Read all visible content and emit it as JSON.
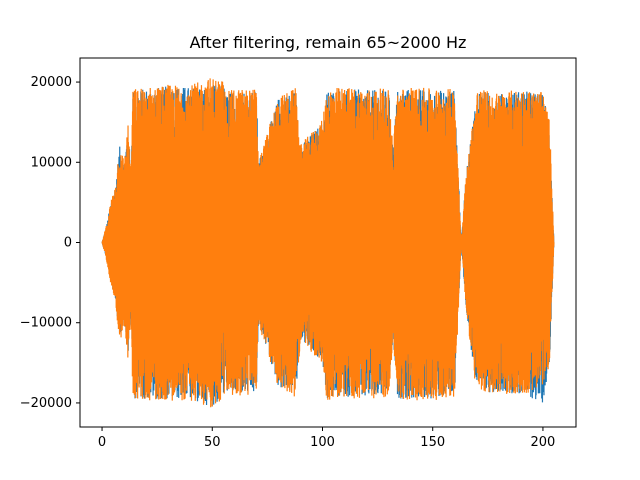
{
  "chart_data": {
    "type": "line",
    "title": "After filtering, remain 65~2000 Hz",
    "xlabel": "",
    "ylabel": "",
    "xlim": [
      -10,
      215
    ],
    "ylim": [
      -23000,
      23000
    ],
    "x_ticks": [
      0,
      50,
      100,
      150,
      200
    ],
    "y_ticks": [
      -20000,
      -10000,
      0,
      10000,
      20000
    ],
    "grid": false,
    "legend": "none",
    "series": [
      {
        "color": "#1f77b4",
        "envelope": {
          "x": [
            0,
            2,
            4,
            6,
            8,
            10,
            12,
            13,
            14,
            20,
            30,
            40,
            50,
            55,
            56,
            60,
            70,
            71,
            80,
            88,
            90,
            100,
            102,
            105,
            110,
            120,
            130,
            132,
            134,
            140,
            150,
            160,
            163,
            165,
            170,
            180,
            190,
            200,
            203,
            205
          ],
          "max": [
            0,
            2000,
            5000,
            7000,
            12000,
            10000,
            15000,
            8000,
            19000,
            19200,
            19500,
            19400,
            19600,
            20000,
            18500,
            19000,
            19000,
            10000,
            18000,
            19000,
            12000,
            15000,
            19000,
            19000,
            19200,
            19000,
            19000,
            12000,
            19000,
            19200,
            19000,
            19000,
            0,
            8000,
            19000,
            18500,
            19000,
            18500,
            15000,
            0
          ],
          "min": [
            0,
            -2000,
            -5000,
            -7000,
            -12000,
            -10000,
            -15000,
            -8000,
            -19500,
            -19500,
            -19500,
            -19600,
            -20500,
            -19500,
            -18500,
            -19000,
            -19000,
            -10000,
            -18000,
            -19000,
            -12000,
            -15000,
            -19500,
            -19500,
            -19200,
            -19500,
            -19000,
            -12000,
            -19500,
            -19500,
            -19500,
            -19000,
            0,
            -8000,
            -19000,
            -18500,
            -19000,
            -20000,
            -15000,
            0
          ]
        }
      },
      {
        "color": "#ff7f0e",
        "envelope": {
          "x": [
            0,
            2,
            4,
            6,
            8,
            10,
            12,
            13,
            14,
            20,
            30,
            40,
            50,
            55,
            56,
            60,
            70,
            71,
            80,
            88,
            90,
            100,
            102,
            105,
            110,
            120,
            130,
            132,
            134,
            140,
            150,
            160,
            163,
            165,
            170,
            180,
            190,
            200,
            203,
            205
          ],
          "max": [
            0,
            2200,
            5200,
            7200,
            12500,
            10200,
            15500,
            8200,
            19200,
            19400,
            19700,
            19600,
            20700,
            20300,
            18700,
            19200,
            19200,
            10200,
            18200,
            19300,
            12200,
            15300,
            19300,
            19300,
            19400,
            19200,
            19200,
            12200,
            19200,
            19400,
            19200,
            19200,
            0,
            8200,
            19200,
            18700,
            19200,
            18700,
            15200,
            0
          ],
          "min": [
            0,
            -2200,
            -5200,
            -7200,
            -12800,
            -10200,
            -15500,
            -8200,
            -19600,
            -19700,
            -19700,
            -19800,
            -20700,
            -19700,
            -18700,
            -19200,
            -19200,
            -10200,
            -18200,
            -19300,
            -12200,
            -15300,
            -19700,
            -19700,
            -19400,
            -19700,
            -19200,
            -12200,
            -19700,
            -19700,
            -19700,
            -19200,
            0,
            -8200,
            -19200,
            -18700,
            -19200,
            -18200,
            -15200,
            0
          ]
        }
      }
    ]
  }
}
